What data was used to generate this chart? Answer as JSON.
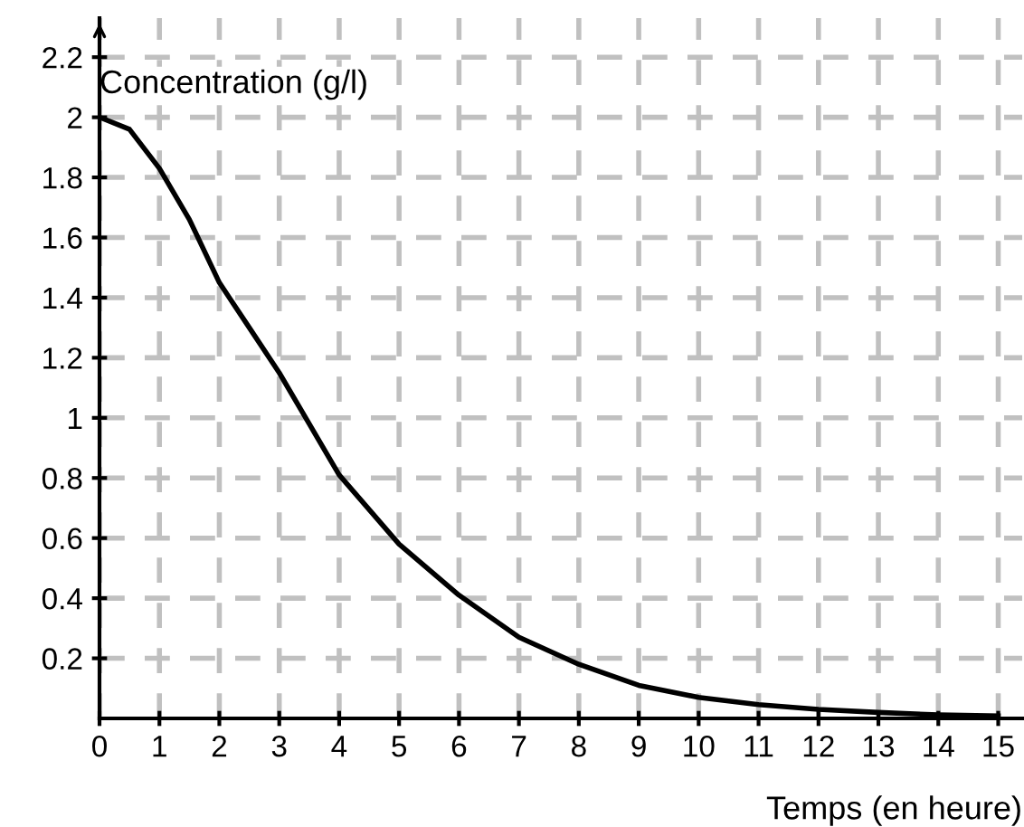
{
  "chart_data": {
    "type": "line",
    "xlabel": "Temps (en heure)",
    "ylabel": "Concentration (g/l)",
    "x": [
      0,
      0.5,
      1,
      1.5,
      2,
      2.5,
      3,
      3.5,
      4,
      5,
      6,
      7,
      8,
      9,
      10,
      11,
      12,
      13,
      14,
      15
    ],
    "series": [
      {
        "color": "#000000",
        "values": [
          2.0,
          1.96,
          1.83,
          1.66,
          1.45,
          1.3,
          1.15,
          0.98,
          0.81,
          0.58,
          0.41,
          0.27,
          0.18,
          0.11,
          0.07,
          0.046,
          0.03,
          0.02,
          0.012,
          0.008
        ]
      }
    ],
    "xlim": [
      0,
      15.4
    ],
    "ylim": [
      0,
      2.33
    ],
    "xticks": [
      0,
      1,
      2,
      3,
      4,
      5,
      6,
      7,
      8,
      9,
      10,
      11,
      12,
      13,
      14,
      15
    ],
    "yticks": [
      0.2,
      0.4,
      0.6,
      0.8,
      1,
      1.2,
      1.4,
      1.6,
      1.8,
      2,
      2.2
    ],
    "grid": true,
    "line_style": "solid",
    "marker": "none"
  }
}
